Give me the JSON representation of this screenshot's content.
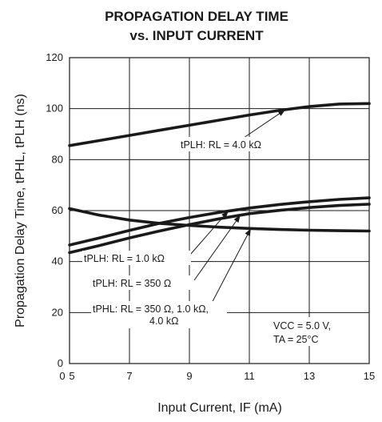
{
  "chart_data": {
    "type": "line",
    "title": "PROPAGATION DELAY TIME",
    "subtitle": "vs. INPUT CURRENT",
    "xlabel": "Input Current, IF (mA)",
    "ylabel": "Propagation Delay Time, tPHL, tPLH (ns)",
    "xlim": [
      5,
      15
    ],
    "ylim": [
      0,
      120
    ],
    "x_tick_labels": [
      "0",
      "5",
      "7",
      "9",
      "11",
      "13",
      "15"
    ],
    "y_tick_labels": [
      "0",
      "20",
      "40",
      "60",
      "80",
      "100",
      "120"
    ],
    "grid": true,
    "series": [
      {
        "label_ref": "ann_plh4k",
        "points": [
          [
            5,
            85.5
          ],
          [
            6,
            87.5
          ],
          [
            7,
            89.5
          ],
          [
            8,
            91.5
          ],
          [
            9,
            93.5
          ],
          [
            10,
            95.5
          ],
          [
            11,
            97.5
          ],
          [
            12,
            99.3
          ],
          [
            13,
            100.8
          ],
          [
            14,
            101.8
          ],
          [
            15,
            102
          ]
        ]
      },
      {
        "label_ref": "ann_plh1k",
        "points": [
          [
            5,
            46.5
          ],
          [
            6,
            49.3
          ],
          [
            7,
            52.2
          ],
          [
            8,
            55
          ],
          [
            9,
            57.3
          ],
          [
            10,
            59.3
          ],
          [
            11,
            61
          ],
          [
            12,
            62.4
          ],
          [
            13,
            63.5
          ],
          [
            14,
            64.4
          ],
          [
            15,
            65
          ]
        ]
      },
      {
        "label_ref": "ann_plh350",
        "points": [
          [
            5,
            43.5
          ],
          [
            6,
            46.3
          ],
          [
            7,
            49.3
          ],
          [
            8,
            52
          ],
          [
            9,
            54.5
          ],
          [
            10,
            56.8
          ],
          [
            11,
            58.8
          ],
          [
            12,
            60.1
          ],
          [
            13,
            61.2
          ],
          [
            14,
            62
          ],
          [
            15,
            62.5
          ]
        ]
      },
      {
        "label_ref": "ann_phl",
        "points": [
          [
            5,
            60.8
          ],
          [
            6,
            58.2
          ],
          [
            7,
            56.3
          ],
          [
            8,
            55
          ],
          [
            9,
            54.2
          ],
          [
            10,
            53.5
          ],
          [
            11,
            53
          ],
          [
            12,
            52.6
          ],
          [
            13,
            52.3
          ],
          [
            14,
            52.1
          ],
          [
            15,
            52
          ]
        ]
      }
    ],
    "annotations": {
      "ann_plh4k": {
        "text": "tPLH: RL = 4.0 kΩ"
      },
      "ann_plh1k": {
        "text": "tPLH: RL = 1.0 kΩ"
      },
      "ann_plh350": {
        "text": "tPLH: RL = 350 Ω"
      },
      "ann_phl": {
        "lines": [
          "tPHL: RL = 350 Ω, 1.0 kΩ,",
          "4.0 kΩ"
        ]
      },
      "conditions": {
        "lines": [
          "VCC = 5.0 V,",
          "TA = 25°C"
        ]
      }
    }
  }
}
